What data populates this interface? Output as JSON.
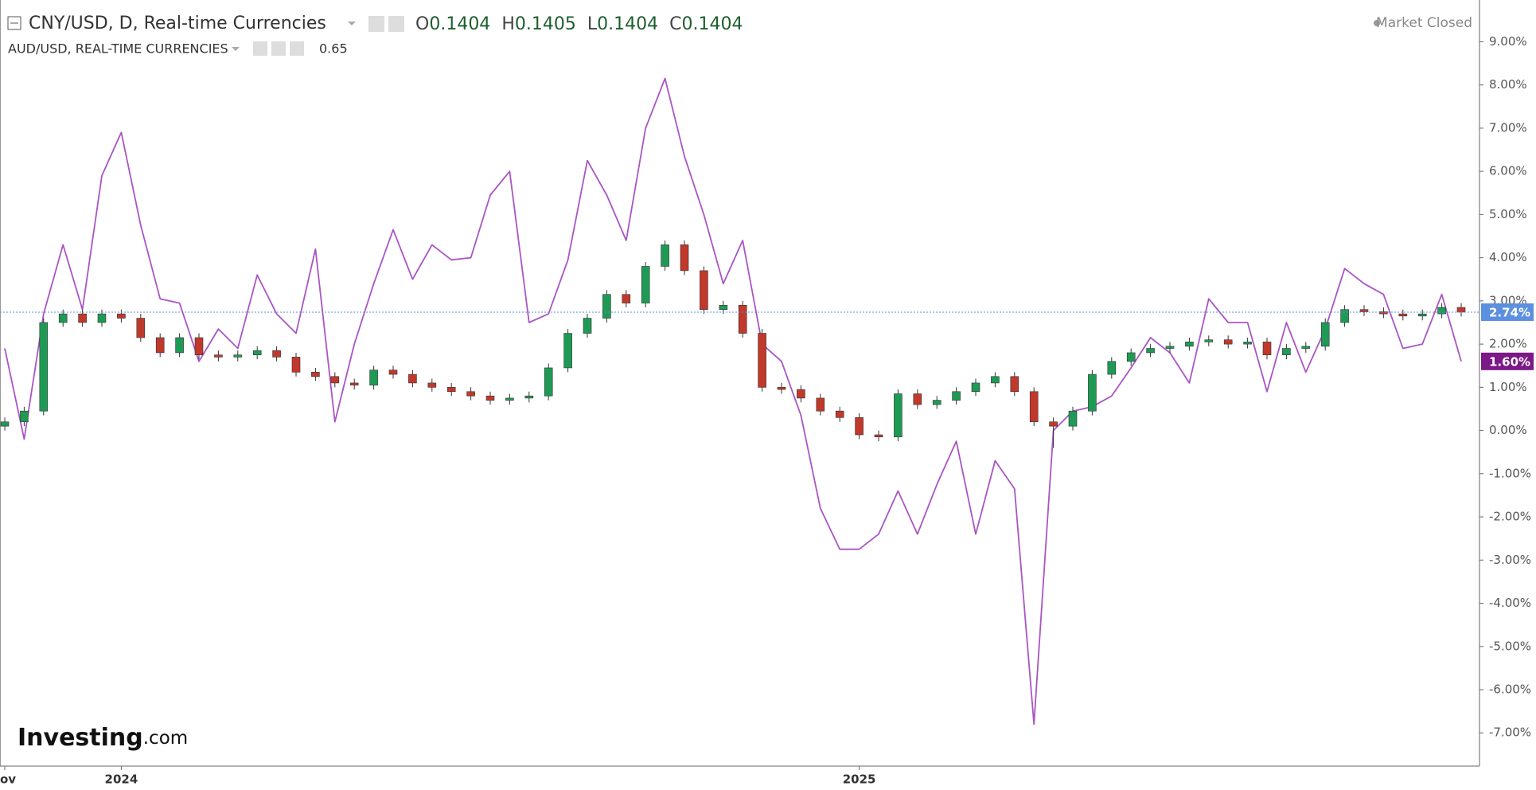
{
  "chart_data": {
    "type": "candlestick",
    "header": {
      "ohlc": [
        {
          "label": "O",
          "value": 0.1404
        },
        {
          "label": "H",
          "value": 0.1405
        },
        {
          "label": "L",
          "value": 0.1404
        },
        {
          "label": "C",
          "value": 0.1404
        }
      ],
      "aud_value": 0.65,
      "status": "Market Closed"
    },
    "watermark": {
      "brand": "Investing",
      "suffix": ".com"
    },
    "categories": [
      "ov",
      null,
      null,
      null,
      null,
      null,
      "2024",
      null,
      null,
      null,
      null,
      null,
      null,
      null,
      null,
      null,
      null,
      null,
      null,
      null,
      null,
      null,
      null,
      null,
      null,
      null,
      null,
      null,
      null,
      null,
      null,
      null,
      null,
      null,
      null,
      null,
      null,
      null,
      null,
      null,
      null,
      null,
      null,
      null,
      "2025",
      null,
      null,
      null,
      null,
      null,
      null,
      null,
      null,
      null,
      null,
      null,
      null,
      null,
      null,
      null,
      null,
      null,
      null,
      null,
      null,
      null,
      null,
      null,
      null,
      null,
      null,
      null,
      null,
      null,
      null,
      null
    ],
    "ylim": [
      -7.77,
      9.93
    ],
    "yticks": [
      {
        "value": 9,
        "label": "9.00%"
      },
      {
        "value": 8,
        "label": "8.00%"
      },
      {
        "value": 7,
        "label": "7.00%"
      },
      {
        "value": 6,
        "label": "6.00%"
      },
      {
        "value": 5,
        "label": "5.00%"
      },
      {
        "value": 4,
        "label": "4.00%"
      },
      {
        "value": 3,
        "label": "3.00%"
      },
      {
        "value": 2,
        "label": "2.00%"
      },
      {
        "value": 1,
        "label": "1.00%"
      },
      {
        "value": 0,
        "label": "0.00%"
      },
      {
        "value": -1,
        "label": "-1.00%"
      },
      {
        "value": -2,
        "label": "-2.00%"
      },
      {
        "value": -3,
        "label": "-3.00%"
      },
      {
        "value": -4,
        "label": "-4.00%"
      },
      {
        "value": -5,
        "label": "-5.00%"
      },
      {
        "value": -6,
        "label": "-6.00%"
      },
      {
        "value": -7,
        "label": "-7.00%"
      }
    ],
    "series": [
      {
        "name": "CNY/USD, D, Real-time Currencies",
        "type": "candlestick",
        "color_up": "#1f9a55",
        "color_down": "#c0392b",
        "last_label": {
          "value": 2.74,
          "label": "2.74%"
        },
        "label_color": "#5b8fe0",
        "open": [
          0.1,
          0.2,
          0.45,
          2.5,
          2.7,
          2.5,
          2.7,
          2.6,
          2.15,
          1.8,
          2.15,
          1.75,
          1.7,
          1.75,
          1.85,
          1.7,
          1.35,
          1.25,
          1.1,
          1.05,
          1.4,
          1.3,
          1.1,
          1.0,
          0.9,
          0.8,
          0.7,
          0.75,
          0.8,
          1.45,
          2.25,
          2.6,
          3.15,
          2.95,
          3.8,
          4.3,
          3.7,
          2.8,
          2.9,
          2.25,
          1.0,
          0.95,
          0.75,
          0.45,
          0.3,
          -0.1,
          -0.15,
          0.85,
          0.6,
          0.7,
          0.9,
          1.1,
          1.25,
          0.9,
          0.2,
          0.1,
          0.45,
          1.3,
          1.6,
          1.8,
          1.9,
          1.95,
          2.05,
          2.1,
          2.0,
          2.05,
          1.75,
          1.9,
          1.95,
          2.5,
          2.8,
          2.75,
          2.7,
          2.65,
          2.7,
          2.85
        ],
        "high": [
          0.3,
          0.55,
          2.6,
          2.8,
          2.8,
          2.8,
          2.8,
          2.7,
          2.25,
          2.25,
          2.25,
          1.85,
          1.85,
          1.95,
          1.95,
          1.8,
          1.45,
          1.35,
          1.2,
          1.5,
          1.5,
          1.4,
          1.2,
          1.1,
          1.0,
          0.9,
          0.85,
          0.9,
          1.55,
          2.35,
          2.7,
          3.25,
          3.25,
          3.9,
          4.4,
          4.4,
          3.8,
          3.0,
          3.0,
          2.35,
          1.1,
          1.05,
          0.85,
          0.55,
          0.4,
          0.0,
          0.95,
          0.95,
          0.8,
          1.0,
          1.2,
          1.35,
          1.35,
          1.0,
          0.3,
          0.55,
          1.4,
          1.7,
          1.9,
          2.0,
          2.05,
          2.15,
          2.2,
          2.2,
          2.15,
          2.15,
          2.0,
          2.05,
          2.6,
          2.9,
          2.9,
          2.85,
          2.8,
          2.8,
          2.95,
          2.95
        ],
        "low": [
          0.0,
          0.1,
          0.35,
          2.4,
          2.4,
          2.4,
          2.5,
          2.05,
          1.7,
          1.7,
          1.65,
          1.6,
          1.6,
          1.65,
          1.6,
          1.25,
          1.15,
          1.0,
          0.95,
          0.95,
          1.2,
          1.0,
          0.9,
          0.8,
          0.7,
          0.6,
          0.6,
          0.65,
          0.7,
          1.35,
          2.15,
          2.5,
          2.85,
          2.85,
          3.7,
          3.6,
          2.7,
          2.7,
          2.15,
          0.9,
          0.85,
          0.65,
          0.35,
          0.2,
          -0.2,
          -0.25,
          -0.25,
          0.5,
          0.5,
          0.6,
          0.8,
          1.0,
          0.8,
          0.1,
          -0.4,
          0.0,
          0.35,
          1.2,
          1.5,
          1.7,
          1.8,
          1.85,
          1.95,
          1.9,
          1.9,
          1.65,
          1.65,
          1.8,
          1.85,
          2.4,
          2.65,
          2.6,
          2.55,
          2.55,
          2.6,
          2.64
        ],
        "close": [
          0.2,
          0.45,
          2.5,
          2.7,
          2.5,
          2.7,
          2.6,
          2.15,
          1.8,
          2.15,
          1.75,
          1.7,
          1.75,
          1.85,
          1.7,
          1.35,
          1.25,
          1.1,
          1.05,
          1.4,
          1.3,
          1.1,
          1.0,
          0.9,
          0.8,
          0.7,
          0.75,
          0.8,
          1.45,
          2.25,
          2.6,
          3.15,
          2.95,
          3.8,
          4.3,
          3.7,
          2.8,
          2.9,
          2.25,
          1.0,
          0.95,
          0.75,
          0.45,
          0.3,
          -0.1,
          -0.15,
          0.85,
          0.6,
          0.7,
          0.9,
          1.1,
          1.25,
          0.9,
          0.2,
          0.1,
          0.45,
          1.3,
          1.6,
          1.8,
          1.9,
          1.95,
          2.05,
          2.1,
          2.0,
          2.05,
          1.75,
          1.9,
          1.95,
          2.5,
          2.8,
          2.75,
          2.7,
          2.65,
          2.7,
          2.85,
          2.74
        ]
      },
      {
        "name": "AUD/USD, REAL-TIME CURRENCIES",
        "type": "line",
        "color": "#a955c4",
        "last_label": {
          "value": 1.6,
          "label": "1.60%"
        },
        "label_color": "#7b1a86",
        "values": [
          1.9,
          -0.2,
          2.7,
          4.3,
          2.8,
          5.9,
          6.9,
          4.75,
          3.05,
          2.95,
          1.6,
          2.35,
          1.9,
          3.6,
          2.7,
          2.25,
          4.2,
          0.2,
          2.0,
          3.4,
          4.65,
          3.5,
          4.3,
          3.95,
          4.0,
          5.45,
          6.0,
          2.5,
          2.7,
          3.95,
          6.25,
          5.45,
          4.4,
          7.0,
          8.15,
          6.35,
          5.0,
          3.4,
          4.4,
          2.0,
          1.6,
          0.35,
          -1.8,
          -2.75,
          -2.75,
          -2.4,
          -1.4,
          -2.4,
          -1.25,
          -0.25,
          -2.4,
          -0.7,
          -1.35,
          -6.8,
          0.0,
          0.45,
          0.55,
          0.8,
          1.45,
          2.15,
          1.8,
          1.1,
          3.05,
          2.5,
          2.5,
          0.9,
          2.5,
          1.35,
          2.35,
          3.75,
          3.4,
          3.15,
          1.9,
          2.0,
          3.15,
          1.6
        ]
      }
    ]
  }
}
